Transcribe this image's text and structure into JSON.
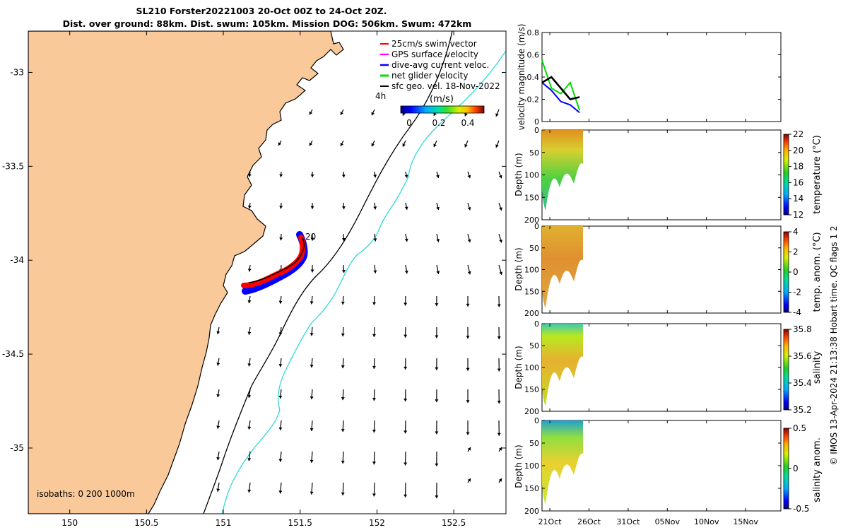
{
  "header": {
    "title_line1": "SL210 Forster20221003 20-Oct 00Z to 24-Oct 20Z.",
    "title_line2": "Dist. over ground: 88km. Dist. swum: 105km. Mission DOG: 506km. Swum: 472km"
  },
  "map": {
    "x_ticks": [
      "150",
      "150.5",
      "151",
      "151.5",
      "152",
      "152.5"
    ],
    "y_ticks": [
      "-33",
      "-33.5",
      "-34",
      "-34.5",
      "-35"
    ],
    "xlim": [
      149.73,
      152.84
    ],
    "ylim": [
      -35.35,
      -32.78
    ],
    "legend": [
      {
        "label": "25cm/s swim vector",
        "color": "#ff0000"
      },
      {
        "label": "GPS surface velocity",
        "color": "#ff00ff"
      },
      {
        "label": "dive-avg current veloc.",
        "color": "#0000ff"
      },
      {
        "label": "net glider velocity",
        "color": "#00dd00"
      },
      {
        "label": "sfc geo. vel. 18-Nov-2022",
        "color": "#000000"
      }
    ],
    "legend_note": "4h",
    "colorbar_title": "(m/s)",
    "colorbar_ticks": [
      "0",
      "0.2",
      "0.4"
    ],
    "track_end_label": "20",
    "isobaths_label": "isobaths: 0   200  1000m",
    "land_color": "#f9c99a",
    "isobath_200_color": "#000000",
    "isobath_1000_color": "#30d8d8"
  },
  "panels": [
    {
      "ylabel": "velocity magnitude (m/s)",
      "yticks": [
        "0",
        "0.2",
        "0.4",
        "0.6",
        "0.8"
      ],
      "ylim": [
        0,
        0.8
      ]
    },
    {
      "ylabel": "Depth (m)",
      "yticks": [
        "0",
        "50",
        "100",
        "150",
        "200"
      ],
      "colorbar_label": "temperature (°C)",
      "colorbar_ticks": [
        "12",
        "14",
        "16",
        "18",
        "20",
        "22"
      ]
    },
    {
      "ylabel": "Depth (m)",
      "yticks": [
        "0",
        "50",
        "100",
        "150",
        "200"
      ],
      "colorbar_label": "temp. anom. (°C)",
      "colorbar_ticks": [
        "-4",
        "-2",
        "0",
        "2",
        "4"
      ]
    },
    {
      "ylabel": "Depth (m)",
      "yticks": [
        "0",
        "50",
        "100",
        "150",
        "200"
      ],
      "colorbar_label": "salinity",
      "colorbar_ticks": [
        "35.2",
        "35.4",
        "35.6",
        "35.8"
      ]
    },
    {
      "ylabel": "Depth (m)",
      "yticks": [
        "0",
        "50",
        "100",
        "150",
        "200"
      ],
      "colorbar_label": "salinity anom.",
      "colorbar_ticks": [
        "-0.5",
        "0",
        "0.5"
      ]
    }
  ],
  "time_axis": {
    "ticks": [
      "21Oct",
      "26Oct",
      "31Oct",
      "05Nov",
      "10Nov",
      "15Nov"
    ]
  },
  "credit": "© IMOS 13-Apr-2024 21:13:38 Hobart time. QC flags 1  2",
  "chart_data": [
    {
      "type": "line",
      "title": "velocity magnitude",
      "ylabel": "velocity magnitude (m/s)",
      "ylim": [
        0,
        0.8
      ],
      "x": [
        "20-Oct",
        "21-Oct",
        "22-Oct",
        "23-Oct",
        "24-Oct"
      ],
      "series": [
        {
          "values": [
            0.35,
            0.4,
            0.3,
            0.2,
            0.22
          ]
        },
        {
          "values": [
            0.55,
            0.3,
            0.25,
            0.35,
            0.1
          ]
        },
        {
          "values": [
            0.35,
            0.28,
            0.18,
            0.15,
            0.08
          ]
        }
      ]
    }
  ]
}
